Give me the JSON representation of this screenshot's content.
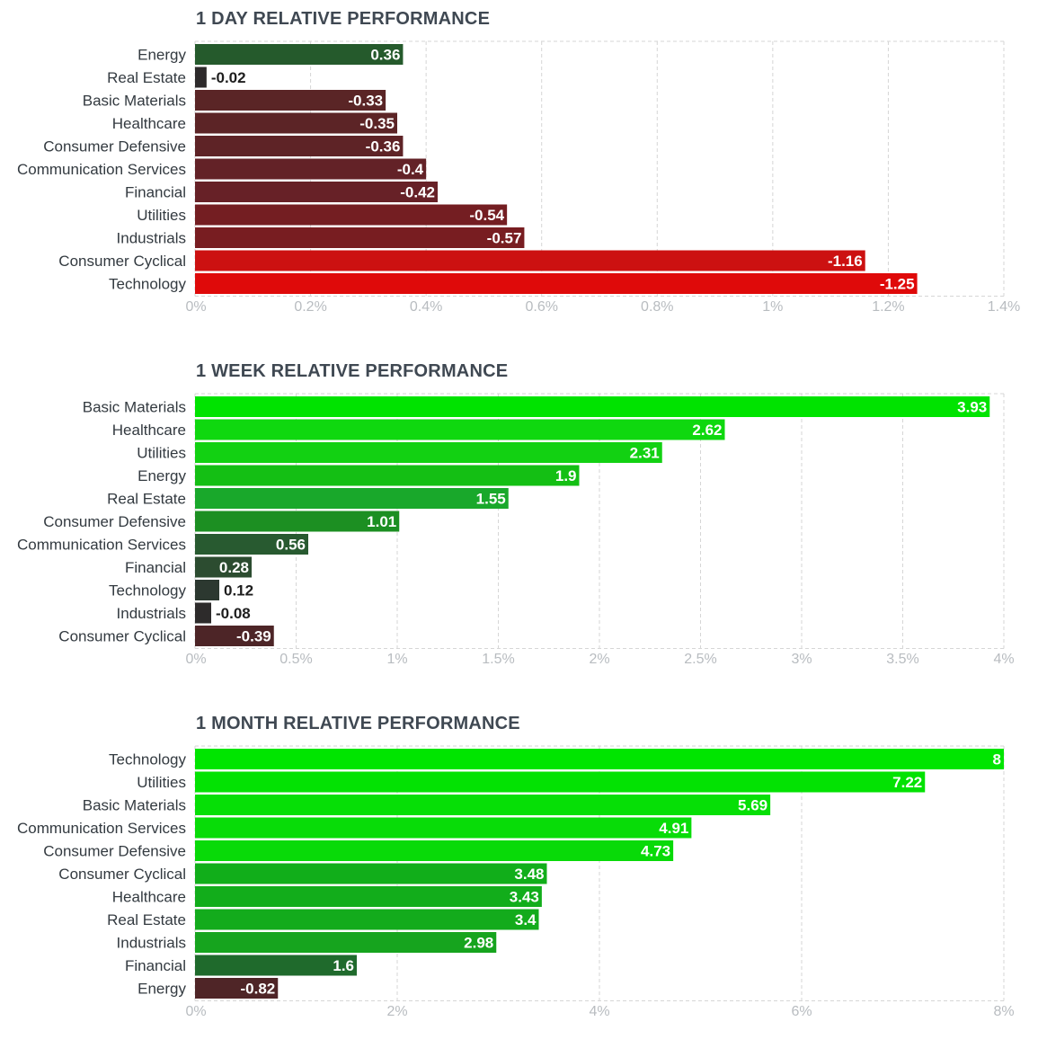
{
  "chart_data": [
    {
      "type": "bar",
      "orientation": "horizontal",
      "title": "1 DAY RELATIVE PERFORMANCE",
      "categories": [
        "Energy",
        "Real Estate",
        "Basic Materials",
        "Healthcare",
        "Consumer Defensive",
        "Communication Services",
        "Financial",
        "Utilities",
        "Industrials",
        "Consumer Cyclical",
        "Technology"
      ],
      "values": [
        0.36,
        -0.02,
        -0.33,
        -0.35,
        -0.36,
        -0.4,
        -0.42,
        -0.54,
        -0.57,
        -1.16,
        -1.25
      ],
      "value_labels": [
        "0.36",
        "-0.02",
        "-0.33",
        "-0.35",
        "-0.36",
        "-0.4",
        "-0.42",
        "-0.54",
        "-0.57",
        "-1.16",
        "-1.25"
      ],
      "bar_colors": [
        "#255a2c",
        "#2d2a2b",
        "#5a2526",
        "#5c2426",
        "#5e2326",
        "#632227",
        "#672127",
        "#741e22",
        "#781d21",
        "#cc1111",
        "#df0a0a"
      ],
      "xlim": [
        0,
        1.4
      ],
      "xticks": [
        0,
        0.2,
        0.4,
        0.6,
        0.8,
        1,
        1.2,
        1.4
      ],
      "xtick_labels": [
        "0%",
        "0.2%",
        "0.4%",
        "0.6%",
        "0.8%",
        "1%",
        "1.2%",
        "1.4%"
      ],
      "grid": true,
      "xlabel": "",
      "ylabel": ""
    },
    {
      "type": "bar",
      "orientation": "horizontal",
      "title": "1 WEEK RELATIVE PERFORMANCE",
      "categories": [
        "Basic Materials",
        "Healthcare",
        "Utilities",
        "Energy",
        "Real Estate",
        "Consumer Defensive",
        "Communication Services",
        "Financial",
        "Technology",
        "Industrials",
        "Consumer Cyclical"
      ],
      "values": [
        3.93,
        2.62,
        2.31,
        1.9,
        1.55,
        1.01,
        0.56,
        0.28,
        0.12,
        -0.08,
        -0.39
      ],
      "value_labels": [
        "3.93",
        "2.62",
        "2.31",
        "1.9",
        "1.55",
        "1.01",
        "0.56",
        "0.28",
        "0.12",
        "-0.08",
        "-0.39"
      ],
      "bar_colors": [
        "#00e300",
        "#0fd80f",
        "#12d112",
        "#14bf14",
        "#19a82b",
        "#1c8f22",
        "#285a30",
        "#2c4c30",
        "#2c3830",
        "#2d2b2b",
        "#4d2527"
      ],
      "xlim": [
        0,
        4
      ],
      "xticks": [
        0,
        0.5,
        1,
        1.5,
        2,
        2.5,
        3,
        3.5,
        4
      ],
      "xtick_labels": [
        "0%",
        "0.5%",
        "1%",
        "1.5%",
        "2%",
        "2.5%",
        "3%",
        "3.5%",
        "4%"
      ],
      "grid": true,
      "xlabel": "",
      "ylabel": ""
    },
    {
      "type": "bar",
      "orientation": "horizontal",
      "title": "1 MONTH RELATIVE PERFORMANCE",
      "categories": [
        "Technology",
        "Utilities",
        "Basic Materials",
        "Communication Services",
        "Consumer Defensive",
        "Consumer Cyclical",
        "Healthcare",
        "Real Estate",
        "Industrials",
        "Financial",
        "Energy"
      ],
      "values": [
        8,
        7.22,
        5.69,
        4.91,
        4.73,
        3.48,
        3.43,
        3.4,
        2.98,
        1.6,
        -0.82
      ],
      "value_labels": [
        "8",
        "7.22",
        "5.69",
        "4.91",
        "4.73",
        "3.48",
        "3.43",
        "3.4",
        "2.98",
        "1.6",
        "-0.82"
      ],
      "bar_colors": [
        "#00e500",
        "#03e203",
        "#06df06",
        "#08dc08",
        "#08da08",
        "#11ae1a",
        "#12ad1b",
        "#13ab1c",
        "#16a41e",
        "#1f6a2c",
        "#4f2527"
      ],
      "xlim": [
        0,
        8
      ],
      "xticks": [
        0,
        2,
        4,
        6,
        8
      ],
      "xtick_labels": [
        "0%",
        "2%",
        "4%",
        "6%",
        "8%"
      ],
      "grid": true,
      "xlabel": "",
      "ylabel": ""
    }
  ]
}
